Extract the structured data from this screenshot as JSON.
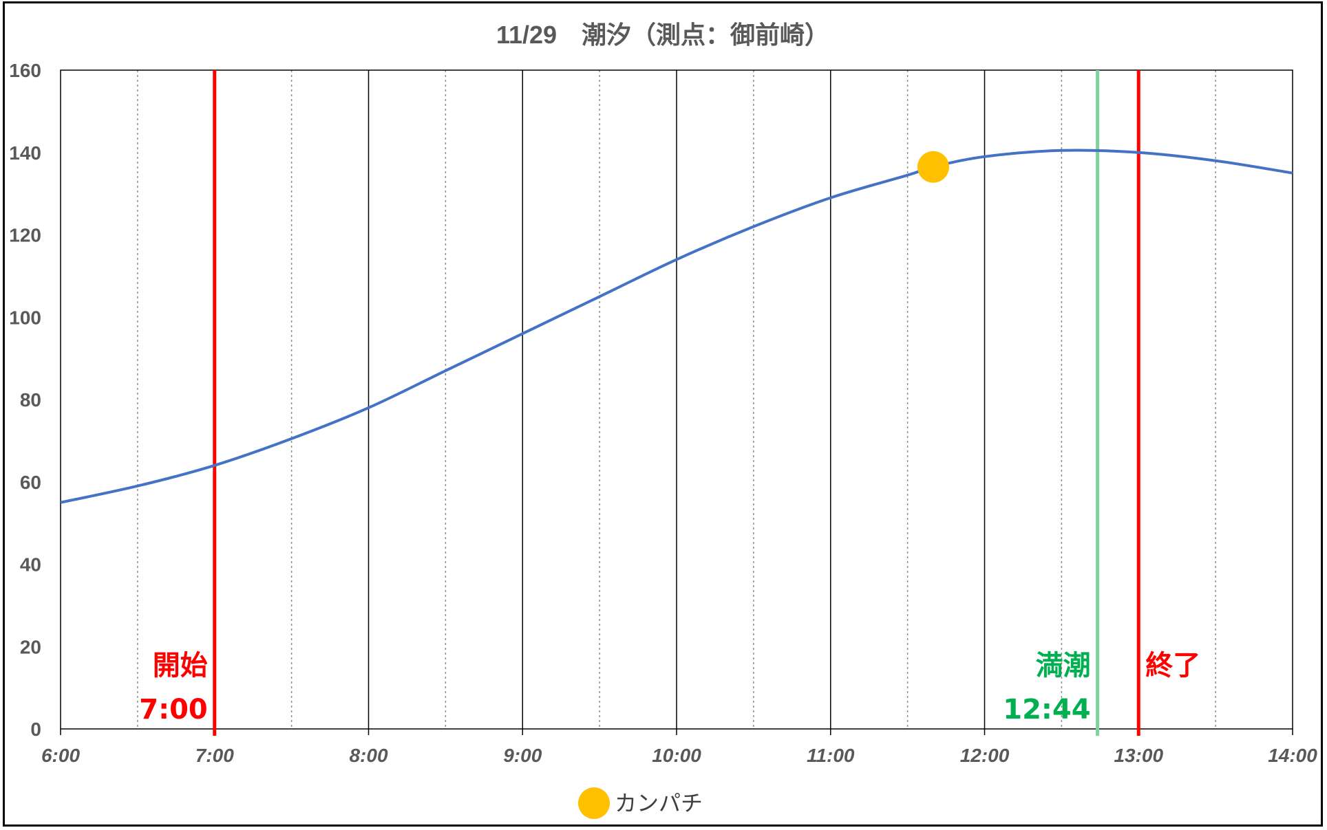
{
  "chart_data": {
    "type": "line",
    "title": "11/29　潮汐（測点：御前崎）",
    "x_ticks": [
      "6:00",
      "7:00",
      "8:00",
      "9:00",
      "10:00",
      "11:00",
      "12:00",
      "13:00",
      "14:00"
    ],
    "x_range": [
      "6:00",
      "14:00"
    ],
    "y_ticks": [
      "0",
      "20",
      "40",
      "60",
      "80",
      "100",
      "120",
      "140",
      "160"
    ],
    "ylim": [
      0,
      160
    ],
    "grid": {
      "major_vertical": true,
      "minor_vertical_dotted": true,
      "horizontal": false
    },
    "series": [
      {
        "type": "line",
        "color": "#4472C4",
        "x": [
          "6:00",
          "6:30",
          "7:00",
          "7:30",
          "8:00",
          "8:30",
          "9:00",
          "9:30",
          "10:00",
          "10:30",
          "11:00",
          "11:30",
          "11:40",
          "12:00",
          "12:30",
          "13:00",
          "13:30",
          "14:00"
        ],
        "y": [
          55,
          59,
          64,
          70.5,
          78,
          87,
          96,
          105,
          114,
          122,
          129,
          134.5,
          136.5,
          139,
          140.5,
          140,
          138,
          135
        ]
      },
      {
        "type": "scatter",
        "name": "カンパチ",
        "color": "#FFC000",
        "x": [
          "11:40"
        ],
        "y": [
          136.5
        ]
      }
    ],
    "vertical_markers": [
      {
        "x": "7:00",
        "color": "#FF0000",
        "label": "開始",
        "time_label": "7:00"
      },
      {
        "x": "12:44",
        "color": "#7FD39D",
        "label": "満潮",
        "time_label": "12:44",
        "text_color": "#00B050"
      },
      {
        "x": "13:00",
        "color": "#FF0000",
        "label": "終了",
        "time_label": ""
      }
    ],
    "legend": {
      "position": "bottom",
      "entries": [
        "カンパチ"
      ]
    }
  }
}
